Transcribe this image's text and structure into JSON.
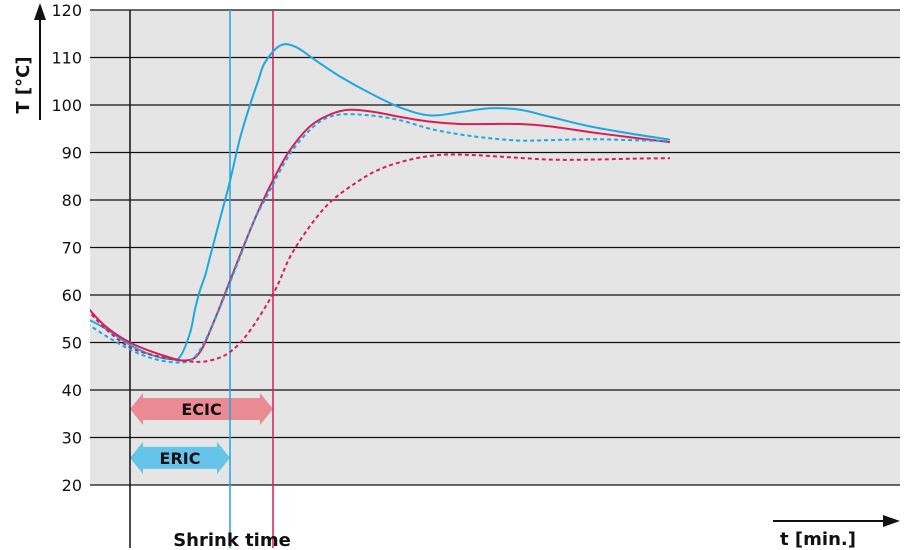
{
  "chart_data": {
    "type": "line",
    "ylabel": "T [°C]",
    "xlabel": "t [min.]",
    "bottom_label": "Shrink time",
    "yticks": [
      20,
      30,
      40,
      50,
      60,
      70,
      80,
      90,
      100,
      110,
      120
    ],
    "ylim": [
      20,
      120
    ],
    "grid": true,
    "colors": {
      "background": "#e5e5e5",
      "blue": "#1ea7e0",
      "red": "#d81e57",
      "eric_band": "#66c3ea",
      "ecic_band": "#ea8a93"
    },
    "series": [
      {
        "color": "blue",
        "style": "solid",
        "points": [
          [
            57,
            55
          ],
          [
            75,
            53
          ],
          [
            100,
            49.5
          ],
          [
            120,
            47.5
          ],
          [
            140,
            46.5
          ],
          [
            150,
            47
          ],
          [
            160,
            52
          ],
          [
            165,
            57
          ],
          [
            170,
            61
          ],
          [
            175,
            64
          ],
          [
            180,
            68
          ],
          [
            190,
            76
          ],
          [
            200,
            84
          ],
          [
            210,
            93
          ],
          [
            220,
            100
          ],
          [
            228,
            105
          ],
          [
            235,
            109
          ],
          [
            250,
            112.5
          ],
          [
            265,
            112.3
          ],
          [
            285,
            109.5
          ],
          [
            310,
            106
          ],
          [
            340,
            102.5
          ],
          [
            370,
            99.5
          ],
          [
            400,
            97.8
          ],
          [
            430,
            98.5
          ],
          [
            460,
            99.3
          ],
          [
            490,
            99
          ],
          [
            520,
            97.5
          ],
          [
            560,
            95.5
          ],
          [
            600,
            94
          ],
          [
            640,
            92.7
          ]
        ]
      },
      {
        "color": "red",
        "style": "solid",
        "points": [
          [
            57,
            57.5
          ],
          [
            75,
            53.5
          ],
          [
            100,
            50
          ],
          [
            130,
            47.5
          ],
          [
            155,
            46.2
          ],
          [
            170,
            48
          ],
          [
            185,
            55
          ],
          [
            200,
            63
          ],
          [
            215,
            71
          ],
          [
            230,
            78.5
          ],
          [
            245,
            85
          ],
          [
            260,
            90.5
          ],
          [
            280,
            95.5
          ],
          [
            300,
            98
          ],
          [
            320,
            99
          ],
          [
            345,
            98.5
          ],
          [
            370,
            97.5
          ],
          [
            400,
            96.5
          ],
          [
            430,
            96
          ],
          [
            460,
            96
          ],
          [
            490,
            96
          ],
          [
            520,
            95.5
          ],
          [
            560,
            94.3
          ],
          [
            600,
            93.2
          ],
          [
            640,
            92.2
          ]
        ]
      },
      {
        "color": "blue",
        "style": "dashed",
        "points": [
          [
            57,
            54
          ],
          [
            75,
            51.5
          ],
          [
            100,
            48.5
          ],
          [
            125,
            46.5
          ],
          [
            150,
            45.8
          ],
          [
            165,
            47
          ],
          [
            180,
            52.5
          ],
          [
            195,
            60
          ],
          [
            210,
            68
          ],
          [
            225,
            76
          ],
          [
            240,
            82
          ],
          [
            255,
            88
          ],
          [
            270,
            92.5
          ],
          [
            290,
            96.5
          ],
          [
            310,
            98
          ],
          [
            340,
            97.8
          ],
          [
            370,
            96.8
          ],
          [
            400,
            95
          ],
          [
            430,
            93.8
          ],
          [
            460,
            93
          ],
          [
            490,
            92.5
          ],
          [
            520,
            92.6
          ],
          [
            560,
            92.8
          ],
          [
            600,
            92.6
          ],
          [
            640,
            92.4
          ]
        ]
      },
      {
        "color": "red",
        "style": "dashed",
        "points": [
          [
            57,
            57
          ],
          [
            75,
            53
          ],
          [
            100,
            49
          ],
          [
            130,
            47
          ],
          [
            160,
            46
          ],
          [
            180,
            46.2
          ],
          [
            200,
            48
          ],
          [
            220,
            52.5
          ],
          [
            245,
            61
          ],
          [
            260,
            68
          ],
          [
            280,
            74.5
          ],
          [
            300,
            79.5
          ],
          [
            325,
            83.5
          ],
          [
            350,
            86.5
          ],
          [
            380,
            88.5
          ],
          [
            410,
            89.5
          ],
          [
            440,
            89.5
          ],
          [
            480,
            89
          ],
          [
            520,
            88.5
          ],
          [
            560,
            88.5
          ],
          [
            600,
            88.7
          ],
          [
            640,
            88.8
          ]
        ]
      }
    ],
    "markers": [
      {
        "x": 100,
        "color": "black"
      },
      {
        "x": 200,
        "color": "blue"
      },
      {
        "x": 243,
        "color": "red"
      }
    ],
    "bands": [
      {
        "label": "ERIC",
        "x0": 100,
        "x1": 200,
        "y": 25.7,
        "color": "eric_band"
      },
      {
        "label": "ECIC",
        "x0": 100,
        "x1": 243,
        "y": 36.0,
        "color": "ecic_band"
      }
    ]
  }
}
